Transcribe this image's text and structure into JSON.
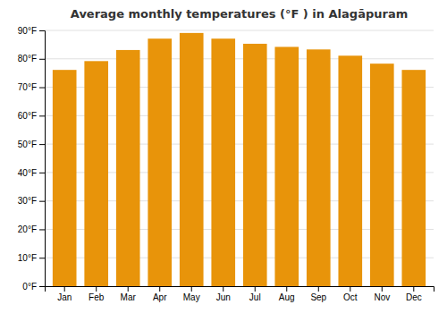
{
  "chart_data": {
    "type": "bar",
    "title": "Average monthly temperatures (°F ) in Alagāpuram",
    "categories": [
      "Jan",
      "Feb",
      "Mar",
      "Apr",
      "May",
      "Jun",
      "Jul",
      "Aug",
      "Sep",
      "Oct",
      "Nov",
      "Dec"
    ],
    "values": [
      76.1,
      79.2,
      83.1,
      87.1,
      89.1,
      87.1,
      85.3,
      84.2,
      83.3,
      81.1,
      78.3,
      76.1
    ],
    "color": "#E8940A",
    "ylim": [
      0,
      90
    ],
    "yticks": [
      {
        "value": 0,
        "label": "0°F"
      },
      {
        "value": 10,
        "label": "10°F"
      },
      {
        "value": 20,
        "label": "20°F"
      },
      {
        "value": 30,
        "label": "30°F"
      },
      {
        "value": 40,
        "label": "40°F"
      },
      {
        "value": 50,
        "label": "50°F"
      },
      {
        "value": 60,
        "label": "60°F"
      },
      {
        "value": 70,
        "label": "70°F"
      },
      {
        "value": 80,
        "label": "80°F"
      },
      {
        "value": 90,
        "label": "90°F"
      }
    ],
    "grid": true
  }
}
